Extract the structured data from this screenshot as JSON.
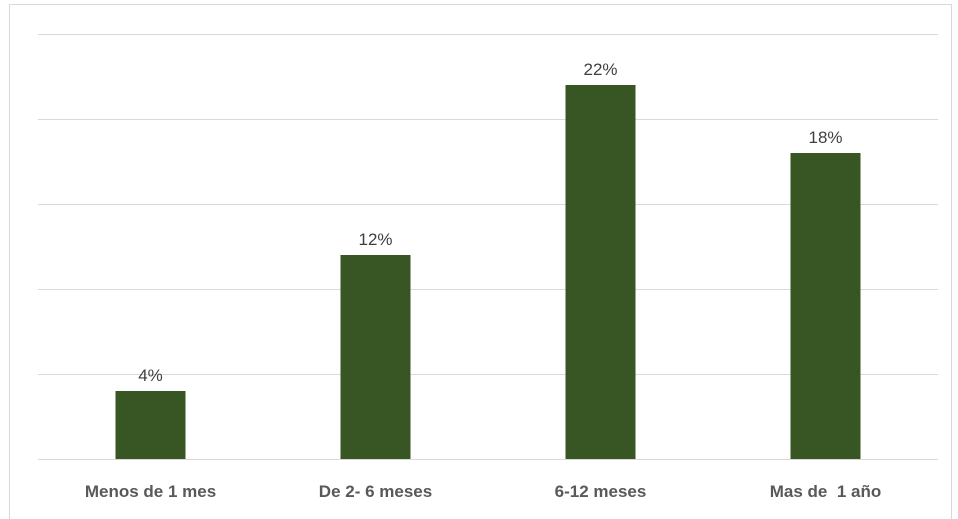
{
  "chart_data": {
    "type": "bar",
    "categories": [
      "Menos de 1 mes",
      "De 2- 6 meses",
      "6-12 meses",
      "Mas de  1 año"
    ],
    "values": [
      4,
      12,
      22,
      18
    ],
    "data_labels": [
      "4%",
      "12%",
      "22%",
      "18%"
    ],
    "title": "",
    "xlabel": "",
    "ylabel": "",
    "ylim": [
      0,
      25
    ],
    "y_ticks": [
      0,
      5,
      10,
      15,
      20,
      25
    ],
    "grid": true,
    "y_tick_labels_visible": false,
    "legend": "none",
    "bar_color": "#375623"
  }
}
